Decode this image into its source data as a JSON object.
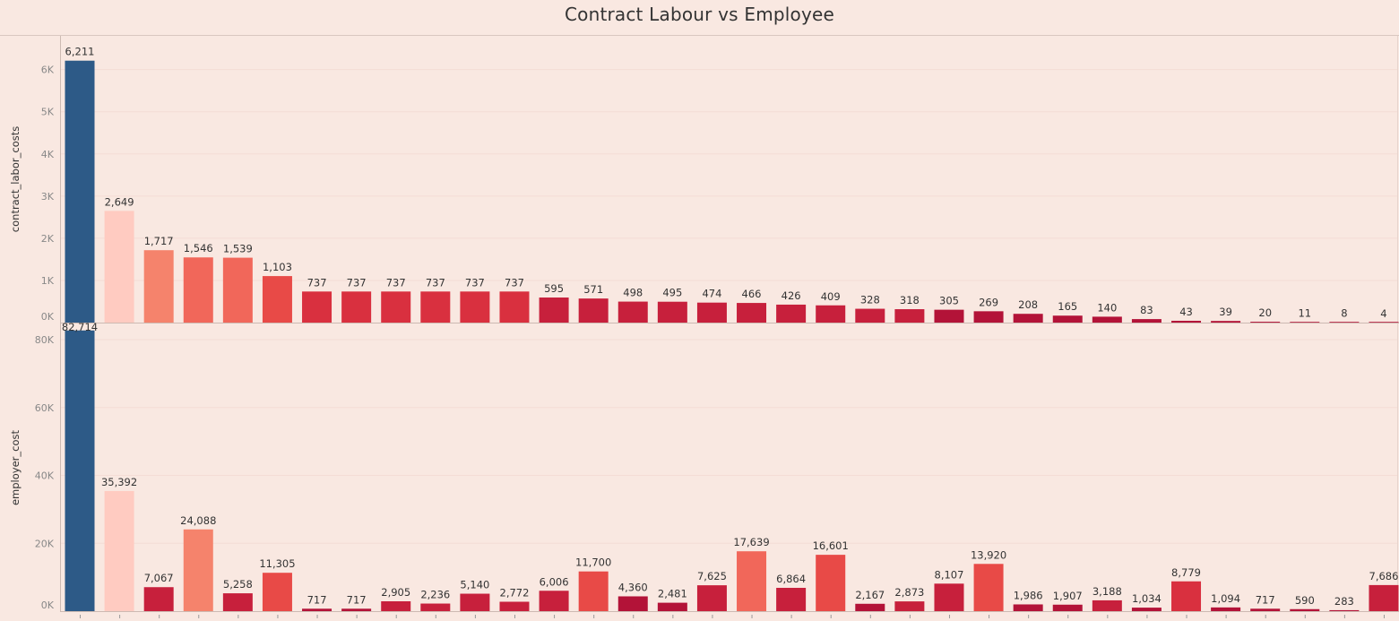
{
  "title": "Contract Labour vs Employee",
  "colors": {
    "background": "#f9e8e1",
    "highlight": "#2d5a87",
    "ramp": [
      "#ffcbc1",
      "#f5836c",
      "#f1675a",
      "#e84a47",
      "#d9303f",
      "#c7203c",
      "#b31338",
      "#a50f35"
    ]
  },
  "chart_data": [
    {
      "type": "bar",
      "ylabel": "contract_labor_costs",
      "yticks": [
        "0K",
        "1K",
        "2K",
        "3K",
        "4K",
        "5K",
        "6K"
      ],
      "ylim": [
        0,
        6800
      ],
      "grid": true,
      "values": [
        6211,
        2649,
        1717,
        1546,
        1539,
        1103,
        737,
        737,
        737,
        737,
        737,
        737,
        595,
        571,
        498,
        495,
        474,
        466,
        426,
        409,
        328,
        318,
        305,
        269,
        208,
        165,
        140,
        83,
        43,
        39,
        20,
        11,
        8,
        4
      ],
      "labels": [
        "6,211",
        "2,649",
        "1,717",
        "1,546",
        "1,539",
        "1,103",
        "737",
        "737",
        "737",
        "737",
        "737",
        "737",
        "595",
        "571",
        "498",
        "495",
        "474",
        "466",
        "426",
        "409",
        "328",
        "318",
        "305",
        "269",
        "208",
        "165",
        "140",
        "83",
        "43",
        "39",
        "20",
        "11",
        "8",
        "4"
      ],
      "color_index": [
        -1,
        0,
        1,
        2,
        2,
        3,
        4,
        4,
        4,
        4,
        4,
        4,
        5,
        5,
        5,
        5,
        5,
        5,
        5,
        5,
        5,
        5,
        6,
        6,
        6,
        6,
        6,
        6,
        6,
        6,
        6,
        6,
        6,
        6
      ]
    },
    {
      "type": "bar",
      "ylabel": "employer_cost",
      "yticks": [
        "0K",
        "20K",
        "40K",
        "60K",
        "80K"
      ],
      "ylim": [
        0,
        84500
      ],
      "grid": true,
      "values": [
        82714,
        35392,
        7067,
        24088,
        5258,
        11305,
        717,
        717,
        2905,
        2236,
        5140,
        2772,
        6006,
        11700,
        4360,
        2481,
        7625,
        17639,
        6864,
        16601,
        2167,
        2873,
        8107,
        13920,
        1986,
        1907,
        3188,
        1034,
        8779,
        1094,
        717,
        590,
        283,
        7686
      ],
      "labels": [
        "82,714",
        "35,392",
        "7,067",
        "24,088",
        "5,258",
        "11,305",
        "717",
        "717",
        "2,905",
        "2,236",
        "5,140",
        "2,772",
        "6,006",
        "11,700",
        "4,360",
        "2,481",
        "7,625",
        "17,639",
        "6,864",
        "16,601",
        "2,167",
        "2,873",
        "8,107",
        "13,920",
        "1,986",
        "1,907",
        "3,188",
        "1,034",
        "8,779",
        "1,094",
        "717",
        "590",
        "283",
        "7,686"
      ],
      "color_index": [
        -1,
        0,
        5,
        1,
        5,
        3,
        6,
        6,
        5,
        5,
        5,
        5,
        5,
        3,
        6,
        6,
        5,
        2,
        5,
        3,
        6,
        5,
        5,
        3,
        6,
        6,
        5,
        6,
        4,
        6,
        6,
        6,
        6,
        5
      ]
    }
  ]
}
